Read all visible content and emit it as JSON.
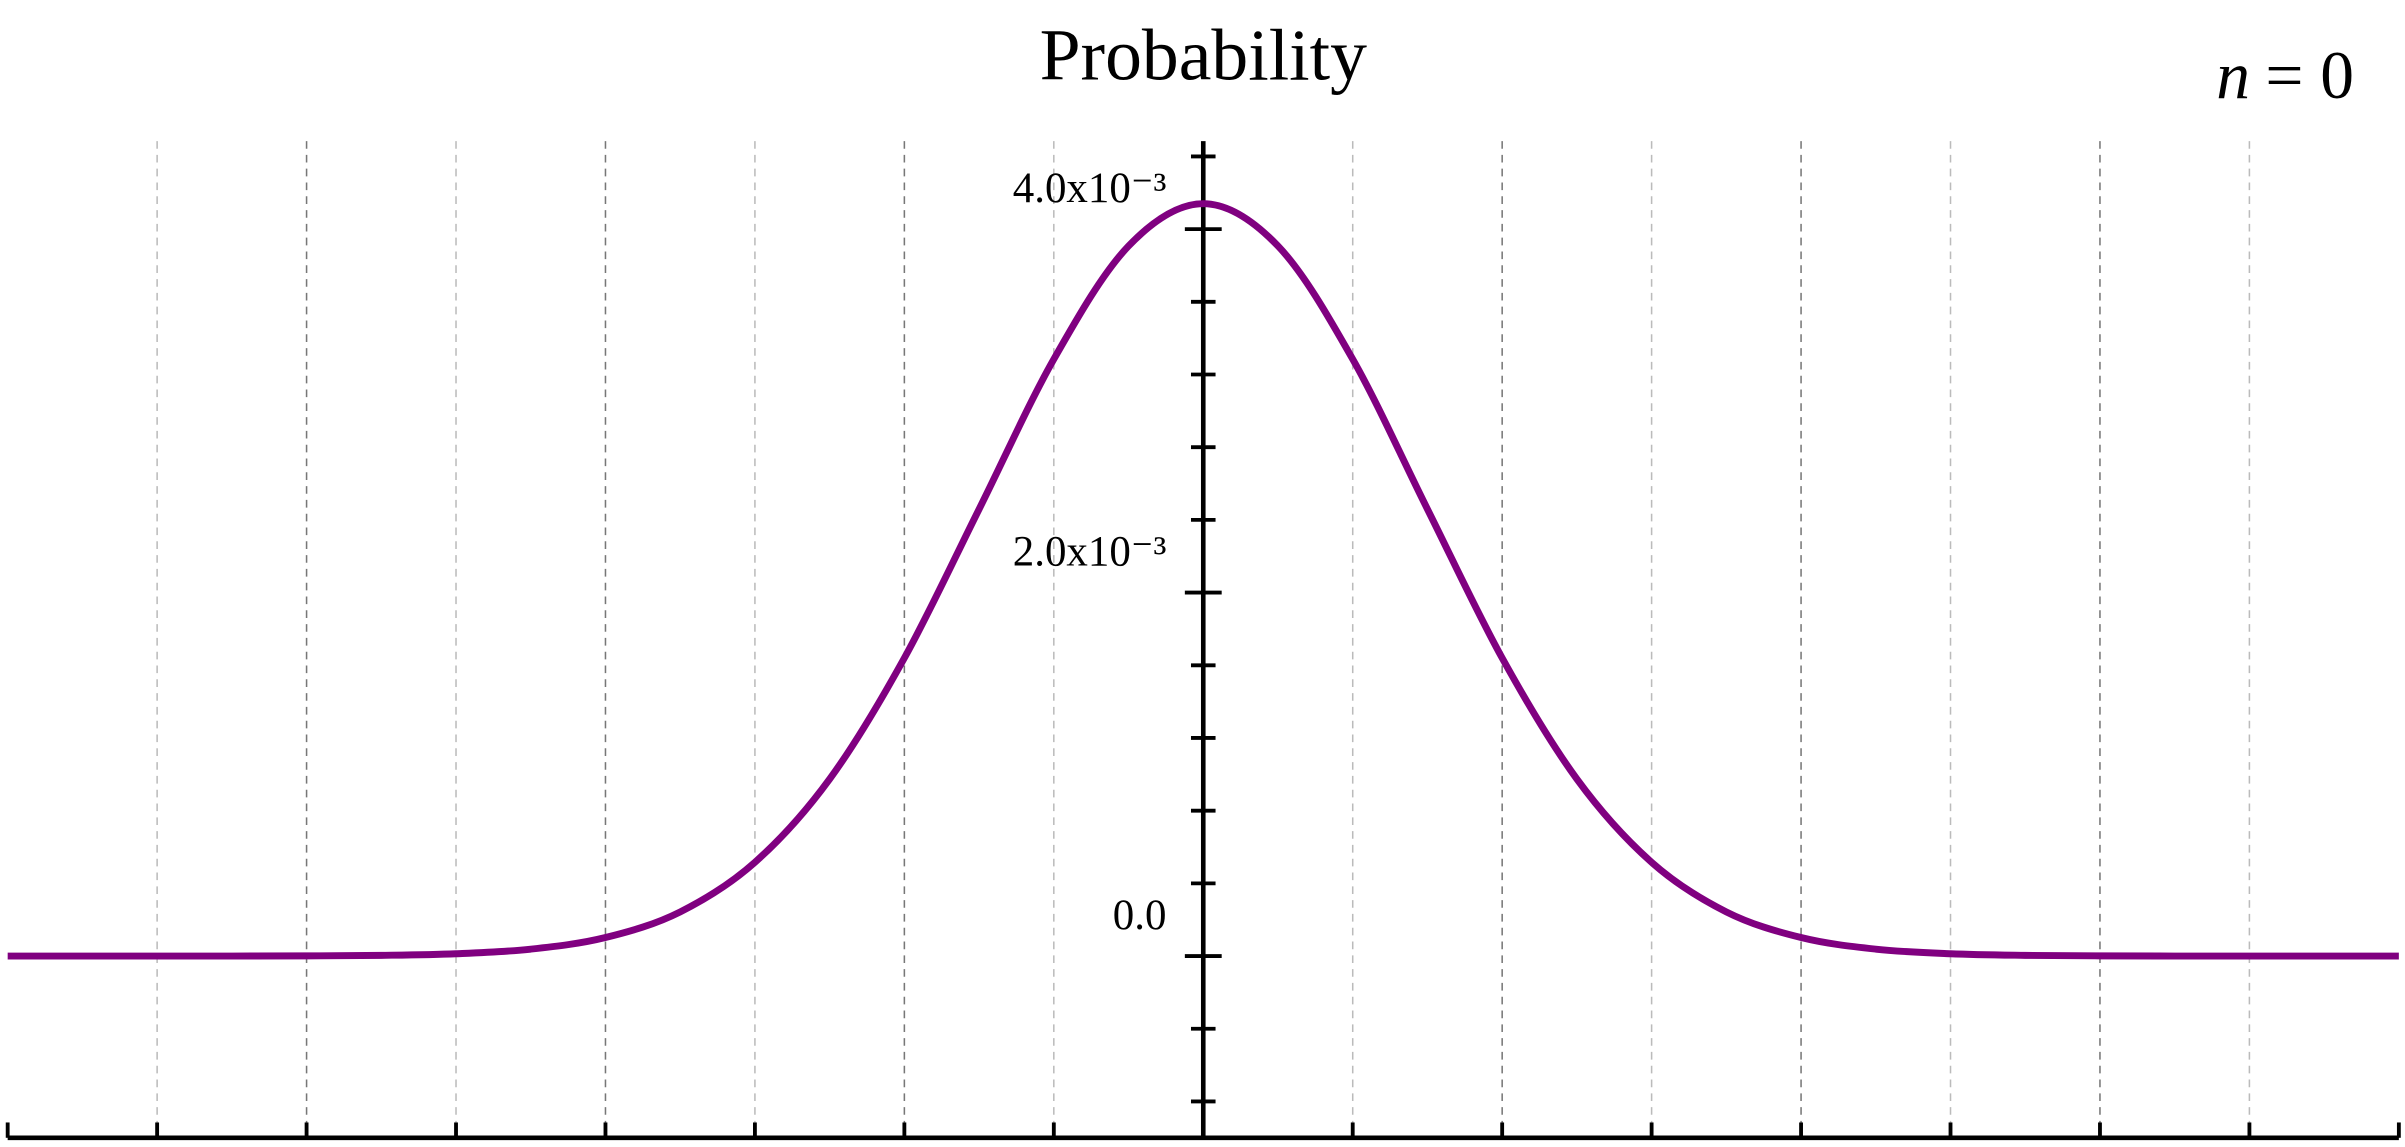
{
  "chart_data": {
    "type": "line",
    "title": "Probability",
    "annotation": [
      "n",
      "= 0"
    ],
    "x": [
      -8,
      -7.5,
      -7,
      -6.5,
      -6,
      -5.5,
      -5,
      -4.5,
      -4,
      -3.5,
      -3,
      -2.5,
      -2,
      -1.5,
      -1,
      -0.5,
      0,
      0.5,
      1,
      1.5,
      2,
      2.5,
      3,
      3.5,
      4,
      4.5,
      5,
      5.5,
      6,
      6.5,
      7,
      7.5,
      8
    ],
    "series": [
      {
        "color": "#800080",
        "values": [
          0,
          0,
          0,
          2e-07,
          1e-06,
          3.8e-06,
          1.27e-05,
          3.81e-05,
          0.000102,
          0.000243,
          0.000516,
          0.000974,
          0.00164,
          0.002459,
          0.003284,
          0.003907,
          0.00414,
          0.003907,
          0.003284,
          0.002459,
          0.00164,
          0.000974,
          0.000516,
          0.000243,
          0.000102,
          3.81e-05,
          1.27e-05,
          3.8e-06,
          1e-06,
          2e-07,
          0,
          0,
          0
        ]
      }
    ],
    "xlim": [
      -8,
      8
    ],
    "xticks": [
      -8,
      -7,
      -6,
      -5,
      -4,
      -3,
      -2,
      -1,
      0,
      1,
      2,
      3,
      4,
      5,
      6,
      7,
      8
    ],
    "ylim": [
      -0.001,
      0.0044
    ],
    "yticks": [
      {
        "value": 0,
        "label": "0.0"
      },
      {
        "value": 0.002,
        "label": "2.0x10⁻³"
      },
      {
        "value": 0.004,
        "label": "4.0x10⁻³"
      }
    ],
    "yminor_ticks": [
      -0.0008,
      -0.0004,
      0.0004,
      0.0008,
      0.0012,
      0.0016,
      0.0024,
      0.0028,
      0.0032,
      0.0036,
      0.0044
    ],
    "grid": true
  }
}
